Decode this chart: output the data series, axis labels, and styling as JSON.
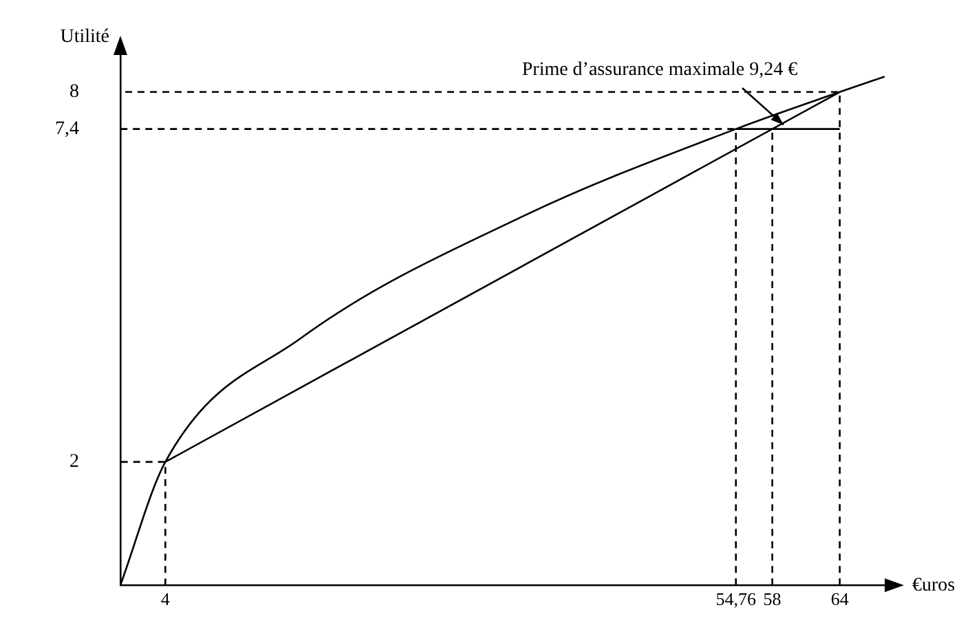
{
  "chart_data": {
    "type": "line",
    "xlabel": "€uros",
    "ylabel": "Utilité",
    "xlim": [
      0,
      68
    ],
    "ylim": [
      0,
      8.6
    ],
    "xticks": [
      4,
      {
        "value": 54.76,
        "label": "54,76"
      },
      58,
      64
    ],
    "yticks": [
      2,
      {
        "value": 7.4,
        "label": "7,4"
      },
      8
    ],
    "grid": false,
    "legend": false,
    "marker": "none",
    "series": [
      {
        "color": "#000000",
        "x": [
          0,
          4,
          16,
          36,
          54.76,
          64,
          68
        ],
        "values": [
          0,
          2,
          4,
          6,
          7.4,
          8,
          8.25
        ],
        "line_style": "solid"
      },
      {
        "color": "#000000",
        "x": [
          4,
          64
        ],
        "values": [
          2,
          8
        ],
        "line_style": "solid"
      },
      {
        "color": "#000000",
        "x": [
          54.76,
          64
        ],
        "values": [
          7.4,
          7.4
        ],
        "line_style": "solid"
      },
      {
        "color": "#000000",
        "x": [
          4,
          4,
          0
        ],
        "values": [
          0,
          2,
          2
        ],
        "line_style": "dashed"
      },
      {
        "color": "#000000",
        "x": [
          54.76,
          54.76,
          0
        ],
        "values": [
          0,
          7.4,
          7.4
        ],
        "line_style": "dashed"
      },
      {
        "color": "#000000",
        "x": [
          58,
          58
        ],
        "values": [
          0,
          7.4
        ],
        "line_style": "dashed"
      },
      {
        "color": "#000000",
        "x": [
          64,
          64,
          0
        ],
        "values": [
          0,
          8,
          8
        ],
        "line_style": "dashed"
      }
    ],
    "annotations": [
      {
        "text": "Prime d’assurance maximale 9,24 €",
        "x": 59,
        "y": 7.4
      }
    ]
  }
}
